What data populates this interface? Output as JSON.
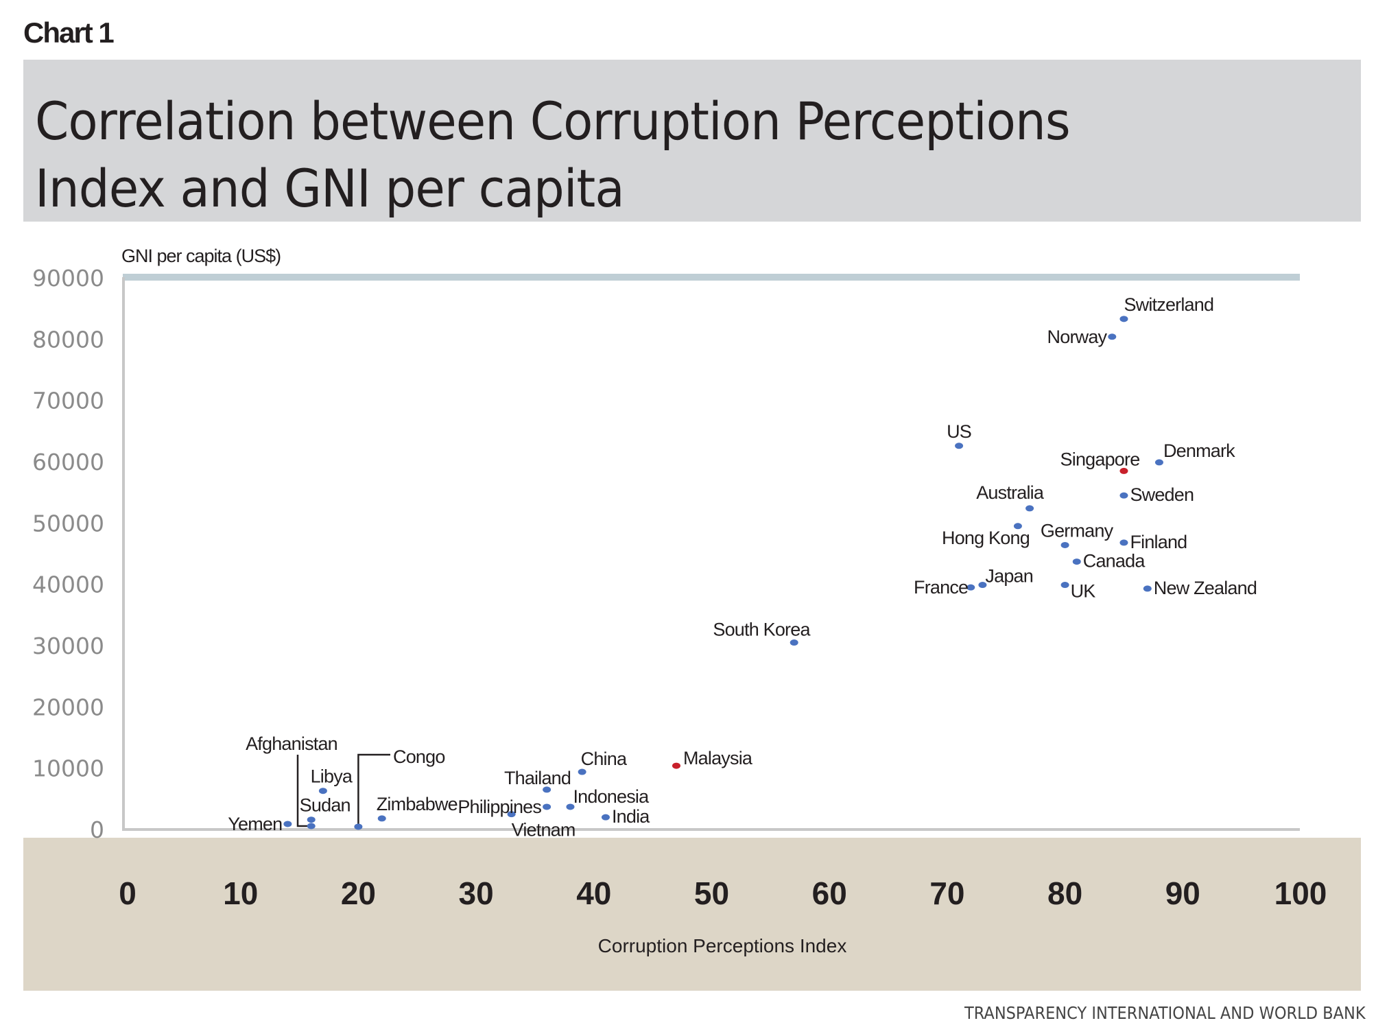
{
  "header": {
    "kicker": "Chart 1",
    "title_line1": "Correlation between Corruption Perceptions",
    "title_line2": "Index and GNI per capita"
  },
  "footer": {
    "source": "TRANSPARENCY INTERNATIONAL AND WORLD BANK"
  },
  "colors": {
    "title_box": "#d5d6d8",
    "axis_band": "#ddd6c7",
    "top_rule": "#bfced5",
    "axis_line": "#c7c7c7",
    "point_default": "#4a72c0",
    "point_highlight": "#c8202b"
  },
  "chart_data": {
    "type": "scatter",
    "title": "Correlation between Corruption Perceptions Index and GNI per capita",
    "xlabel": "Corruption Perceptions Index",
    "ylabel": "GNI per capita (US$)",
    "xlim": [
      0,
      100
    ],
    "ylim": [
      0,
      90000
    ],
    "xticks": [
      "0",
      "10",
      "20",
      "30",
      "40",
      "50",
      "60",
      "70",
      "80",
      "90",
      "100"
    ],
    "yticks": [
      "0",
      "10000",
      "20000",
      "30000",
      "40000",
      "50000",
      "60000",
      "70000",
      "80000",
      "90000"
    ],
    "grid": false,
    "legend": "none",
    "highlighted": [
      "Singapore",
      "Malaysia"
    ],
    "source": "Transparency International and World Bank",
    "points": [
      {
        "name": "Switzerland",
        "x": 85,
        "y": 83300,
        "highlight": false,
        "label_pos": "above-right"
      },
      {
        "name": "Norway",
        "x": 84,
        "y": 80400,
        "highlight": false,
        "label_pos": "left"
      },
      {
        "name": "US",
        "x": 71,
        "y": 62600,
        "highlight": false,
        "label_pos": "above"
      },
      {
        "name": "Denmark",
        "x": 88,
        "y": 59900,
        "highlight": false,
        "label_pos": "above-right"
      },
      {
        "name": "Singapore",
        "x": 85,
        "y": 58500,
        "highlight": true,
        "label_pos": "above-left"
      },
      {
        "name": "Sweden",
        "x": 85,
        "y": 54500,
        "highlight": false,
        "label_pos": "right"
      },
      {
        "name": "Australia",
        "x": 77,
        "y": 52400,
        "highlight": false,
        "label_pos": "above-left"
      },
      {
        "name": "Hong Kong",
        "x": 76,
        "y": 49500,
        "highlight": false,
        "label_pos": "below-left"
      },
      {
        "name": "Germany",
        "x": 80,
        "y": 46400,
        "highlight": false,
        "label_pos": "above"
      },
      {
        "name": "Finland",
        "x": 85,
        "y": 46800,
        "highlight": false,
        "label_pos": "right"
      },
      {
        "name": "Canada",
        "x": 81,
        "y": 43700,
        "highlight": false,
        "label_pos": "right"
      },
      {
        "name": "Japan",
        "x": 73,
        "y": 39900,
        "highlight": false,
        "label_pos": "above-right"
      },
      {
        "name": "France",
        "x": 72,
        "y": 39500,
        "highlight": false,
        "label_pos": "left"
      },
      {
        "name": "UK",
        "x": 80,
        "y": 39900,
        "highlight": false,
        "label_pos": "below-right"
      },
      {
        "name": "New Zealand",
        "x": 87,
        "y": 39300,
        "highlight": false,
        "label_pos": "right"
      },
      {
        "name": "South Korea",
        "x": 57,
        "y": 30500,
        "highlight": false,
        "label_pos": "above-left"
      },
      {
        "name": "Malaysia",
        "x": 47,
        "y": 10400,
        "highlight": true,
        "label_pos": "right"
      },
      {
        "name": "China",
        "x": 39,
        "y": 9400,
        "highlight": false,
        "label_pos": "above-right"
      },
      {
        "name": "Thailand",
        "x": 36,
        "y": 6500,
        "highlight": false,
        "label_pos": "above-left"
      },
      {
        "name": "Philippines",
        "x": 36,
        "y": 3700,
        "highlight": false,
        "label_pos": "left"
      },
      {
        "name": "Indonesia",
        "x": 38,
        "y": 3700,
        "highlight": false,
        "label_pos": "above-right"
      },
      {
        "name": "Vietnam",
        "x": 33,
        "y": 2500,
        "highlight": false,
        "label_pos": "below"
      },
      {
        "name": "India",
        "x": 41,
        "y": 2000,
        "highlight": false,
        "label_pos": "right"
      },
      {
        "name": "Libya",
        "x": 17,
        "y": 6300,
        "highlight": false,
        "label_pos": "above"
      },
      {
        "name": "Zimbabwe",
        "x": 22,
        "y": 1800,
        "highlight": false,
        "label_pos": "above-right"
      },
      {
        "name": "Sudan",
        "x": 16,
        "y": 1600,
        "highlight": false,
        "label_pos": "above"
      },
      {
        "name": "Yemen",
        "x": 14,
        "y": 900,
        "highlight": false,
        "label_pos": "left"
      },
      {
        "name": "Afghanistan",
        "x": 16,
        "y": 560,
        "highlight": false,
        "label_pos": "leader-afghanistan"
      },
      {
        "name": "Congo",
        "x": 20,
        "y": 450,
        "highlight": false,
        "label_pos": "leader-congo"
      }
    ]
  }
}
